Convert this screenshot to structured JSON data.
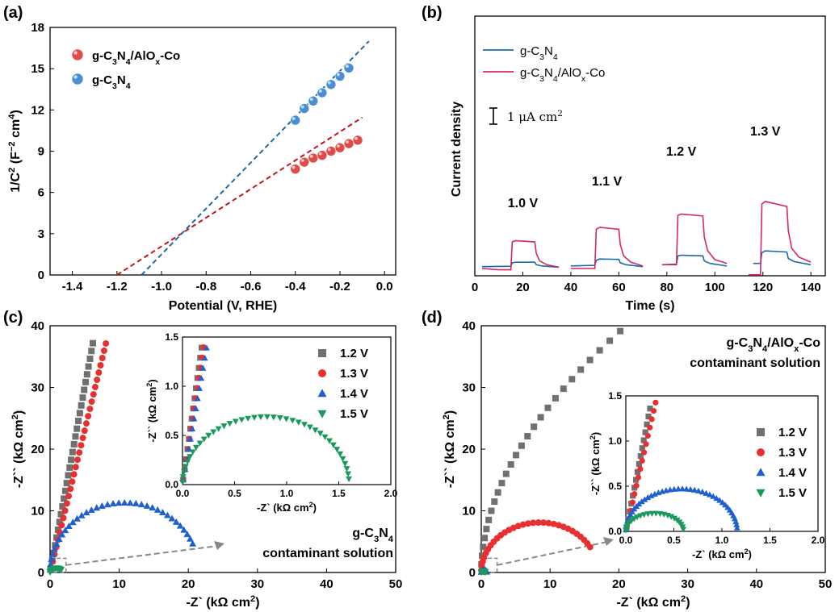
{
  "figure": {
    "panel_labels": [
      "(a)",
      "(b)",
      "(c)",
      "(d)"
    ]
  },
  "chart_data": [
    {
      "panel": "a",
      "type": "scatter",
      "xlabel": "Potential (V, RHE)",
      "ylabel_parts": [
        "1/C",
        "2",
        " (F",
        "−2",
        " cm",
        "4",
        ")"
      ],
      "xlim": [
        -1.5,
        0.05
      ],
      "ylim": [
        0,
        18
      ],
      "xticks": [
        -1.4,
        -1.2,
        -1.0,
        -0.8,
        -0.6,
        -0.4,
        -0.2,
        0.0
      ],
      "xtick_labels": [
        "-1.4",
        "-1.2",
        "-1.0",
        "-0.8",
        "-0.6",
        "-0.4",
        "-0.2",
        "0.0"
      ],
      "yticks": [
        0,
        3,
        6,
        9,
        12,
        15,
        18
      ],
      "ytick_labels": [
        "0",
        "3",
        "6",
        "9",
        "12",
        "15",
        "18"
      ],
      "legend_position": "top-left",
      "series": [
        {
          "name": "g-C3N4/AlOx-Co",
          "name_parts": [
            [
              "g-C",
              ""
            ],
            [
              "3",
              "sub"
            ],
            [
              "N",
              ""
            ],
            [
              "4",
              "sub"
            ],
            [
              "/AlO",
              ""
            ],
            [
              "x",
              "sub"
            ],
            [
              "-Co",
              ""
            ]
          ],
          "color": "#e24a4a",
          "x": [
            -0.4,
            -0.36,
            -0.32,
            -0.28,
            -0.24,
            -0.2,
            -0.16,
            -0.12
          ],
          "y": [
            7.7,
            8.2,
            8.5,
            8.7,
            9.0,
            9.25,
            9.55,
            9.8
          ],
          "fit": {
            "x": [
              -1.2,
              -0.1
            ],
            "y": [
              0.0,
              11.45
            ],
            "color": "#c0161b"
          }
        },
        {
          "name": "g-C3N4",
          "name_parts": [
            [
              "g-C",
              ""
            ],
            [
              "3",
              "sub"
            ],
            [
              "N",
              ""
            ],
            [
              "4",
              "sub"
            ]
          ],
          "color": "#4a8fd6",
          "x": [
            -0.4,
            -0.36,
            -0.32,
            -0.28,
            -0.24,
            -0.2,
            -0.16
          ],
          "y": [
            11.25,
            12.1,
            12.65,
            13.25,
            13.85,
            14.45,
            15.05
          ],
          "fit": {
            "x": [
              -1.09,
              -0.07
            ],
            "y": [
              0.0,
              17.0
            ],
            "color": "#1b6aa8"
          }
        }
      ]
    },
    {
      "panel": "b",
      "type": "line",
      "xlabel": "Time (s)",
      "ylabel": "Current density",
      "xlim": [
        0,
        146
      ],
      "ylim": [
        0,
        10
      ],
      "xticks": [
        0,
        20,
        40,
        60,
        80,
        100,
        120,
        140
      ],
      "xtick_labels": [
        "0",
        "20",
        "40",
        "60",
        "80",
        "100",
        "120",
        "140"
      ],
      "scale_bar_label": "1 μA cm",
      "scale_bar_sup": "2",
      "legend_position": "top-left",
      "voltage_labels": [
        "1.0 V",
        "1.1 V",
        "1.2 V",
        "1.3 V"
      ],
      "voltage_label_x": [
        20,
        55,
        86,
        121
      ],
      "series": [
        {
          "name": "g-C3N4",
          "name_parts": [
            [
              "g-C",
              ""
            ],
            [
              "3",
              "sub"
            ],
            [
              "N",
              ""
            ],
            [
              "4",
              "sub"
            ]
          ],
          "color": "#1b6aa8",
          "segments": [
            {
              "x": [
                3,
                15,
                15.6,
                17,
                25,
                25.6,
                28,
                35
              ],
              "y": [
                0.15,
                0.18,
                0.45,
                0.5,
                0.5,
                0.3,
                0.2,
                0.1
              ]
            },
            {
              "x": [
                40,
                50,
                50.6,
                52,
                60,
                60.6,
                63,
                70
              ],
              "y": [
                0.2,
                0.25,
                0.65,
                0.75,
                0.72,
                0.45,
                0.3,
                0.15
              ]
            },
            {
              "x": [
                78,
                84,
                84.6,
                86,
                95,
                95.6,
                98,
                105
              ],
              "y": [
                0.3,
                0.35,
                1.0,
                1.05,
                1.0,
                0.6,
                0.4,
                0.2
              ]
            },
            {
              "x": [
                116,
                119,
                119.6,
                121,
                130,
                130.6,
                133,
                140
              ],
              "y": [
                0.4,
                0.4,
                1.25,
                1.4,
                1.3,
                0.8,
                0.55,
                0.3
              ]
            }
          ]
        },
        {
          "name": "g-C3N4/AlOx-Co",
          "name_parts": [
            [
              "g-C",
              ""
            ],
            [
              "3",
              "sub"
            ],
            [
              "N",
              ""
            ],
            [
              "4",
              "sub"
            ],
            [
              "/AlO",
              ""
            ],
            [
              "x",
              "sub"
            ],
            [
              "-Co",
              ""
            ]
          ],
          "color": "#d6246b",
          "segments": [
            {
              "x": [
                3,
                10,
                15,
                15.6,
                17,
                25,
                25.6,
                27,
                30,
                35
              ],
              "y": [
                0.0,
                -0.1,
                -0.1,
                2.1,
                2.2,
                2.1,
                1.2,
                0.6,
                0.3,
                0.1
              ]
            },
            {
              "x": [
                40,
                50,
                50.6,
                52,
                60,
                60.6,
                62,
                65,
                70
              ],
              "y": [
                0.0,
                0.0,
                3.1,
                3.25,
                3.1,
                1.9,
                1.0,
                0.5,
                0.2
              ]
            },
            {
              "x": [
                78,
                84,
                84.6,
                86,
                95,
                95.6,
                97,
                100,
                105
              ],
              "y": [
                0.3,
                0.3,
                4.2,
                4.3,
                4.15,
                2.5,
                1.4,
                0.7,
                0.4
              ]
            },
            {
              "x": [
                114,
                119,
                119.6,
                121,
                130,
                130.6,
                132,
                135,
                140
              ],
              "y": [
                -0.5,
                -0.5,
                5.1,
                5.3,
                4.9,
                3.0,
                1.6,
                0.9,
                0.5
              ]
            }
          ]
        }
      ]
    },
    {
      "panel": "c",
      "type": "scatter",
      "xlabel": "-Z` (kΩ cm",
      "xlabel_sup": "2",
      "ylabel": "-Z`` (kΩ cm",
      "ylabel_sup": "2",
      "xlim": [
        0,
        50
      ],
      "ylim": [
        0,
        40
      ],
      "xticks": [
        0,
        10,
        20,
        30,
        40,
        50
      ],
      "yticks": [
        0,
        10,
        20,
        30,
        40
      ],
      "xtick_labels": [
        "0",
        "10",
        "20",
        "30",
        "40",
        "50"
      ],
      "ytick_labels": [
        "0",
        "10",
        "20",
        "30",
        "40"
      ],
      "annotation_parts": [
        [
          "g-C",
          ""
        ],
        [
          "3",
          "sub"
        ],
        [
          "N",
          ""
        ],
        [
          "4",
          "sub"
        ]
      ],
      "annotation_line2": "contaminant solution",
      "legend_position": "inset, right",
      "series": [
        {
          "name": "1.2 V",
          "marker": "square",
          "color": "#707070",
          "curve": "line",
          "slope": 6.0,
          "xmax": 6.3,
          "n": 30
        },
        {
          "name": "1.3 V",
          "marker": "circle",
          "color": "#e83030",
          "curve": "line",
          "slope": 4.6,
          "xmax": 8.2,
          "n": 32
        },
        {
          "name": "1.4 V",
          "marker": "triangle",
          "color": "#1f5fcf",
          "curve": "arc",
          "R": 10.8,
          "H": 11.3,
          "xend": 20.8,
          "n": 36
        },
        {
          "name": "1.5 V",
          "marker": "triangle-down",
          "color": "#1a9a5a",
          "curve": "arc",
          "R": 0.9,
          "H": 0.7,
          "xend": 1.65,
          "n": 12
        }
      ],
      "inset": {
        "xlabel": "-Z` (kΩ cm",
        "xlabel_sup": "2",
        "ylabel": "-Z`` (kΩ cm",
        "ylabel_sup": "2",
        "xlim": [
          0,
          2.0
        ],
        "ylim": [
          0,
          1.5
        ],
        "xticks": [
          0,
          0.5,
          1.0,
          1.5,
          2.0
        ],
        "yticks": [
          0,
          0.5,
          1.0,
          1.5
        ],
        "xtick_labels": [
          "0.0",
          "0.5",
          "1.0",
          "1.5",
          "2.0"
        ],
        "ytick_labels": [
          "0.0",
          "0.5",
          "1.0",
          "1.5"
        ],
        "series": [
          {
            "name": "1.2 V",
            "marker": "square",
            "color": "#707070",
            "curve": "line",
            "slope": 7.6,
            "xmax": 0.19,
            "n": 14
          },
          {
            "name": "1.3 V",
            "marker": "circle",
            "color": "#e83030",
            "curve": "line",
            "slope": 6.9,
            "xmax": 0.21,
            "n": 14
          },
          {
            "name": "1.4 V",
            "marker": "triangle",
            "color": "#1f5fcf",
            "curve": "line",
            "slope": 6.0,
            "xmax": 0.24,
            "n": 14
          },
          {
            "name": "1.5 V",
            "marker": "triangle-down",
            "color": "#1a9a5a",
            "curve": "arc",
            "R": 0.8,
            "H": 0.69,
            "xend": 1.62,
            "n": 40
          }
        ]
      }
    },
    {
      "panel": "d",
      "type": "scatter",
      "xlabel": "-Z` (kΩ cm",
      "xlabel_sup": "2",
      "ylabel": "-Z`` (kΩ cm",
      "ylabel_sup": "2",
      "xlim": [
        0,
        50
      ],
      "ylim": [
        0,
        40
      ],
      "xticks": [
        0,
        10,
        20,
        30,
        40,
        50
      ],
      "yticks": [
        0,
        10,
        20,
        30,
        40
      ],
      "xtick_labels": [
        "0",
        "10",
        "20",
        "30",
        "40",
        "50"
      ],
      "ytick_labels": [
        "0",
        "10",
        "20",
        "30",
        "40"
      ],
      "annotation_parts": [
        [
          "g-C",
          ""
        ],
        [
          "3",
          "sub"
        ],
        [
          "N",
          ""
        ],
        [
          "4",
          "sub"
        ],
        [
          "/AlO",
          ""
        ],
        [
          "x",
          "sub"
        ],
        [
          "-Co",
          ""
        ]
      ],
      "annotation_line2": "contaminant solution",
      "legend_position": "inset, right",
      "series": [
        {
          "name": "1.2 V",
          "marker": "square",
          "color": "#707070",
          "curve": "power",
          "A": 8.2,
          "p": 0.52,
          "xmax": 20.2,
          "n": 26
        },
        {
          "name": "1.3 V",
          "marker": "circle",
          "color": "#e83030",
          "curve": "arc",
          "R": 8.5,
          "H": 8.1,
          "xend": 16.0,
          "n": 30
        },
        {
          "name": "1.4 V",
          "marker": "triangle",
          "color": "#1f5fcf",
          "curve": "arc",
          "R": 0.4,
          "H": 0.4,
          "xend": 0.8,
          "n": 8
        },
        {
          "name": "1.5 V",
          "marker": "triangle-down",
          "color": "#1a9a5a",
          "curve": "arc",
          "R": 0.3,
          "H": 0.2,
          "xend": 0.6,
          "n": 6
        }
      ],
      "inset": {
        "xlabel": "-Z` (kΩ cm",
        "xlabel_sup": "2",
        "ylabel": "-Z`` (kΩ cm",
        "ylabel_sup": "2",
        "xlim": [
          0,
          2.0
        ],
        "ylim": [
          0,
          1.5
        ],
        "xticks": [
          0,
          0.5,
          1.0,
          1.5,
          2.0
        ],
        "yticks": [
          0,
          0.5,
          1.0,
          1.5
        ],
        "xtick_labels": [
          "0.0",
          "0.5",
          "1.0",
          "1.5",
          "2.0"
        ],
        "ytick_labels": [
          "0.0",
          "0.5",
          "1.0",
          "1.5"
        ],
        "series": [
          {
            "name": "1.2 V",
            "marker": "square",
            "color": "#707070",
            "curve": "line",
            "slope": 5.4,
            "xmax": 0.26,
            "n": 16
          },
          {
            "name": "1.3 V",
            "marker": "circle",
            "color": "#e83030",
            "curve": "line",
            "slope": 4.6,
            "xmax": 0.32,
            "n": 16
          },
          {
            "name": "1.4 V",
            "marker": "triangle",
            "color": "#1f5fcf",
            "curve": "arc",
            "R": 0.58,
            "H": 0.47,
            "xend": 1.16,
            "n": 42
          },
          {
            "name": "1.5 V",
            "marker": "triangle-down",
            "color": "#1a9a5a",
            "curve": "arc",
            "R": 0.3,
            "H": 0.2,
            "xend": 0.6,
            "n": 22
          }
        ]
      }
    }
  ]
}
